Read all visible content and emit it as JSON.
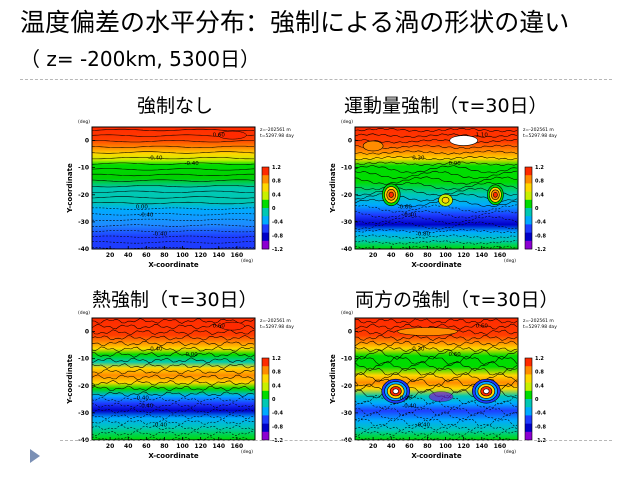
{
  "slide": {
    "title": "温度偏差の水平分布：強制による渦の形状の違い",
    "subtitle": "（ z= -200km, 5300日）"
  },
  "panels": [
    {
      "label": "強制なし",
      "style": "none",
      "info_line1": "z=-202561 m",
      "info_line2": "t=5297.98 day",
      "contour_labels": [
        "0.60",
        "-0.40",
        "-0.40",
        "0.00",
        "-0.40",
        "-0.40"
      ]
    },
    {
      "label": "運動量強制（τ=30日）",
      "style": "mom",
      "info_line1": "z=-202561 m",
      "info_line2": "t=5297.98 day",
      "contour_labels": [
        "1.10",
        "0.30",
        "0.90",
        "-0.60",
        "-0.40",
        "-0.80"
      ]
    },
    {
      "label": "熱強制（τ=30日）",
      "style": "heat",
      "info_line1": "z=-202561 m",
      "info_line2": "t=5297.98 day",
      "contour_labels": [
        "0.60",
        "-0.40",
        "0.00",
        "-0.40",
        "-0.40",
        "-0.40"
      ]
    },
    {
      "label": "両方の強制（τ=30日）",
      "style": "both",
      "info_line1": "z=-202561 m",
      "info_line2": "t=5297.98 day",
      "contour_labels": [
        "0.60",
        "0.30",
        "0.60",
        "-0.40",
        "-0.40",
        "-0.40"
      ]
    }
  ],
  "chart_data": [
    {
      "type": "heatmap",
      "title": "強制なし",
      "xlabel": "X-coordinate",
      "x_unit": "(deg)",
      "ylabel": "Y-coordinate",
      "y_unit": "(deg)",
      "x_ticks": [
        20,
        40,
        60,
        80,
        100,
        120,
        140,
        160
      ],
      "y_ticks": [
        0,
        -10,
        -20,
        -30,
        -40
      ],
      "xlim": [
        0,
        180
      ],
      "ylim": [
        -40,
        5
      ],
      "colorbar_ticks": [
        1.2,
        0.8,
        0.4,
        0,
        -0.4,
        -0.8,
        -1.2
      ],
      "colorbar_colors": [
        "#ff2a00",
        "#ff8c00",
        "#ffd700",
        "#c8f000",
        "#00dc00",
        "#00c8b4",
        "#00aaff",
        "#1e3cff",
        "#0000c8",
        "#8c00d2"
      ]
    },
    {
      "type": "heatmap",
      "title": "運動量強制（τ=30日）",
      "xlabel": "X-coordinate",
      "x_unit": "(deg)",
      "ylabel": "Y-coordinate",
      "y_unit": "(deg)",
      "x_ticks": [
        20,
        40,
        60,
        80,
        100,
        120,
        140,
        160
      ],
      "y_ticks": [
        0,
        -10,
        -20,
        -30,
        -40
      ],
      "xlim": [
        0,
        180
      ],
      "ylim": [
        -40,
        5
      ],
      "colorbar_ticks": [
        1.2,
        0.8,
        0.4,
        0,
        -0.4,
        -0.8,
        -1.2
      ],
      "colorbar_colors": [
        "#ff2a00",
        "#ff8c00",
        "#ffd700",
        "#c8f000",
        "#00dc00",
        "#00c8b4",
        "#00aaff",
        "#1e3cff",
        "#0000c8",
        "#8c00d2"
      ]
    },
    {
      "type": "heatmap",
      "title": "熱強制（τ=30日）",
      "xlabel": "X-coordinate",
      "x_unit": "(deg)",
      "ylabel": "Y-coordinate",
      "y_unit": "(deg)",
      "x_ticks": [
        20,
        40,
        60,
        80,
        100,
        120,
        140,
        160
      ],
      "y_ticks": [
        0,
        -10,
        -20,
        -30,
        -40
      ],
      "xlim": [
        0,
        180
      ],
      "ylim": [
        -40,
        5
      ],
      "colorbar_ticks": [
        1.2,
        0.8,
        0.4,
        0,
        -0.4,
        -0.8,
        -1.2
      ],
      "colorbar_colors": [
        "#ff2a00",
        "#ff8c00",
        "#ffd700",
        "#c8f000",
        "#00dc00",
        "#00c8b4",
        "#00aaff",
        "#1e3cff",
        "#0000c8",
        "#8c00d2"
      ]
    },
    {
      "type": "heatmap",
      "title": "両方の強制（τ=30日）",
      "xlabel": "X-coordinate",
      "x_unit": "(deg)",
      "ylabel": "Y-coordinate",
      "y_unit": "(deg)",
      "x_ticks": [
        20,
        40,
        60,
        80,
        100,
        120,
        140,
        160
      ],
      "y_ticks": [
        0,
        -10,
        -20,
        -30,
        -40
      ],
      "xlim": [
        0,
        180
      ],
      "ylim": [
        -40,
        5
      ],
      "colorbar_ticks": [
        1.2,
        0.8,
        0.4,
        0,
        -0.4,
        -0.8,
        -1.2
      ],
      "colorbar_colors": [
        "#ff2a00",
        "#ff8c00",
        "#ffd700",
        "#c8f000",
        "#00dc00",
        "#00c8b4",
        "#00aaff",
        "#1e3cff",
        "#0000c8",
        "#8c00d2"
      ]
    }
  ]
}
